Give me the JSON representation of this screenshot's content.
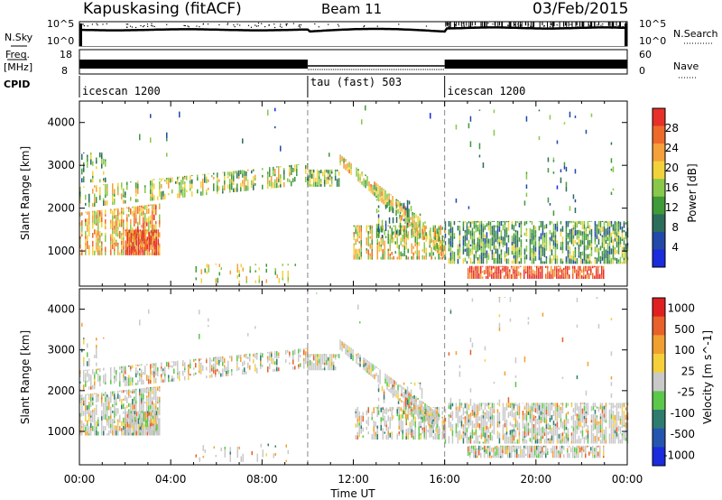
{
  "header": {
    "station": "Kapuskasing (fitACF)",
    "beam": "Beam 11",
    "date": "03/Feb/2015"
  },
  "top_panels": {
    "nsky_label": "N.Sky",
    "nsearch_label": "N.Search",
    "nsky_ticks": [
      "10^5",
      "10^0"
    ],
    "nsearch_ticks": [
      "10^5",
      "10^0"
    ],
    "freq_label": "Freq.",
    "freq_unit": "[MHz]",
    "freq_ticks": [
      "18",
      "8"
    ],
    "nave_label": "Nave",
    "nave_ticks": [
      "60",
      "0"
    ],
    "cpid_label": "CPID",
    "cpid_segments": [
      {
        "label": "icescan 1200",
        "start_hour": 0,
        "end_hour": 10
      },
      {
        "label": "tau (fast) 503",
        "start_hour": 10,
        "end_hour": 16
      },
      {
        "label": "icescan 1200",
        "start_hour": 16,
        "end_hour": 24
      }
    ]
  },
  "chart_data": [
    {
      "type": "heatmap",
      "name": "power-panel",
      "xlabel": "Time UT",
      "ylabel": "Slant Range [km]",
      "xlim": [
        0,
        24
      ],
      "ylim": [
        180,
        4500
      ],
      "x_tick_labels": [
        "00:00",
        "04:00",
        "08:00",
        "12:00",
        "16:00",
        "20:00",
        "00:00"
      ],
      "y_ticks": [
        1000,
        2000,
        3000,
        4000
      ],
      "colorbar": {
        "label": "Power [dB]",
        "ticks": [
          "4",
          "8",
          "12",
          "16",
          "20",
          "24",
          "28"
        ],
        "colors": [
          "#1a2cdc",
          "#2349a8",
          "#2b6e5a",
          "#3f9a3a",
          "#88c84a",
          "#f2d23a",
          "#f5a03a",
          "#ee6a2a",
          "#e8302a"
        ]
      }
    },
    {
      "type": "heatmap",
      "name": "velocity-panel",
      "xlabel": "Time UT",
      "ylabel": "Slant Range [km]",
      "xlim": [
        0,
        24
      ],
      "ylim": [
        180,
        4500
      ],
      "x_tick_labels": [
        "00:00",
        "04:00",
        "08:00",
        "12:00",
        "16:00",
        "20:00",
        "00:00"
      ],
      "y_ticks": [
        1000,
        2000,
        3000,
        4000
      ],
      "colorbar": {
        "label": "Velocity [m s^-1]",
        "ticks": [
          "1000",
          "500",
          "100",
          "25",
          "-25",
          "-100",
          "-500",
          "-1000"
        ],
        "colors": [
          "#1a2cdc",
          "#2456b0",
          "#2e7c70",
          "#5bc84a",
          "#c9c9c9",
          "#f5d03a",
          "#f0a030",
          "#e8602a",
          "#e02020"
        ]
      }
    }
  ],
  "xaxis_label": "Time UT",
  "x_tick_labels": [
    "00:00",
    "04:00",
    "08:00",
    "12:00",
    "16:00",
    "20:00",
    "00:00"
  ]
}
